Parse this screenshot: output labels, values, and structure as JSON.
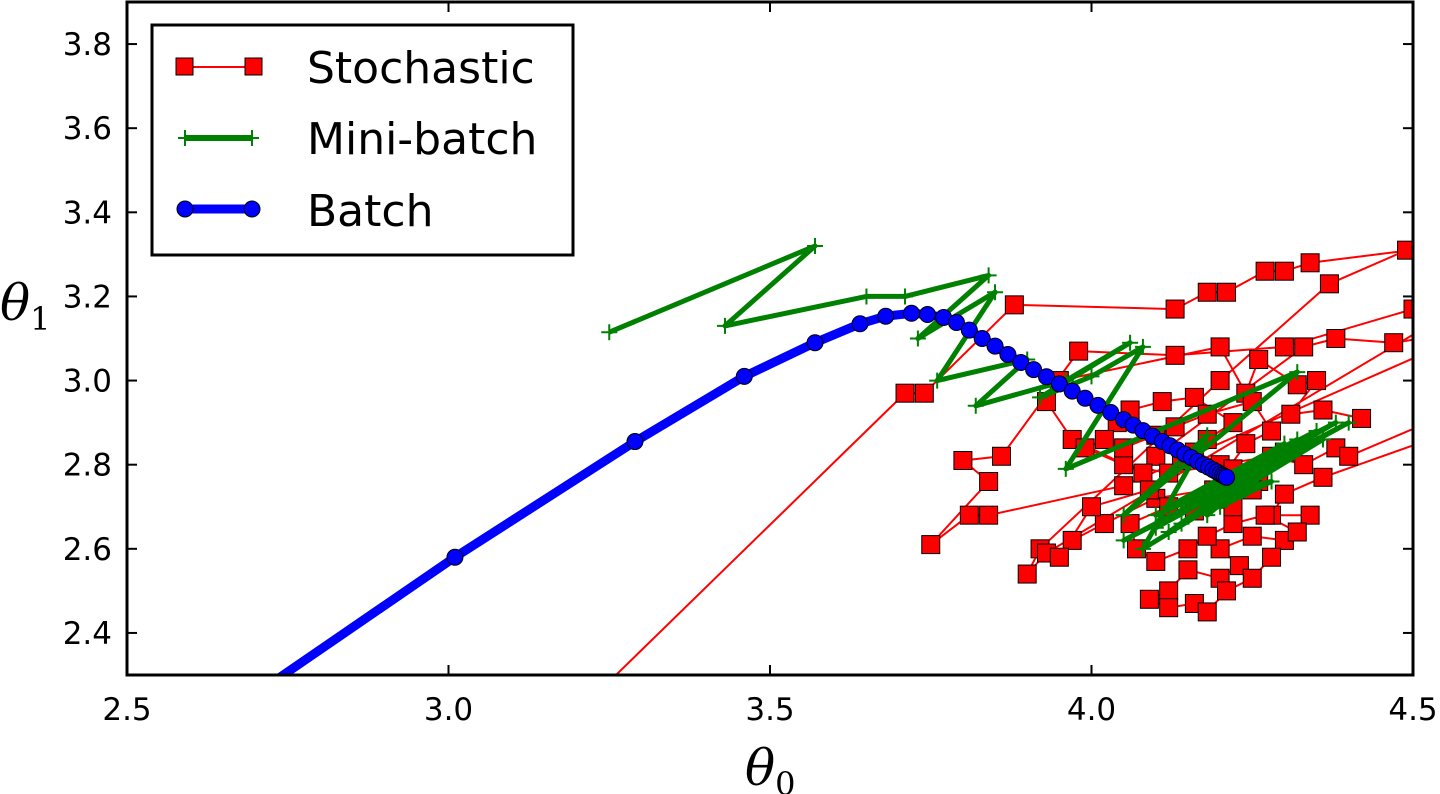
{
  "chart_data": {
    "type": "line",
    "xlabel": "θ0",
    "ylabel": "θ1",
    "xlabel_parts": {
      "symbol": "θ",
      "sub": "0"
    },
    "ylabel_parts": {
      "symbol": "θ",
      "sub": "1"
    },
    "xlim": [
      2.5,
      4.5
    ],
    "ylim": [
      2.3,
      3.9
    ],
    "xticks": [
      "2.5",
      "3.0",
      "3.5",
      "4.0",
      "4.5"
    ],
    "yticks": [
      "2.4",
      "2.6",
      "2.8",
      "3.0",
      "3.2",
      "3.4",
      "3.6",
      "3.8"
    ],
    "grid": false,
    "legend_placement": "top-left",
    "series": [
      {
        "name": "Stochastic",
        "color": "#ff0000",
        "marker": "square",
        "points": [
          [
            3.2,
            2.21
          ],
          [
            3.71,
            2.97
          ],
          [
            3.74,
            2.97
          ],
          [
            3.88,
            3.18
          ],
          [
            4.13,
            3.17
          ],
          [
            4.18,
            3.21
          ],
          [
            4.21,
            3.21
          ],
          [
            4.27,
            3.26
          ],
          [
            4.3,
            3.26
          ],
          [
            4.34,
            3.28
          ],
          [
            4.6,
            3.33
          ],
          [
            4.49,
            3.31
          ],
          [
            4.37,
            3.23
          ],
          [
            4.2,
            3.0
          ],
          [
            3.92,
            2.6
          ],
          [
            3.9,
            2.54
          ],
          [
            3.93,
            2.59
          ],
          [
            4.6,
            3.2
          ],
          [
            4.5,
            3.17
          ],
          [
            4.3,
            3.08
          ],
          [
            4.13,
            3.06
          ],
          [
            3.98,
            3.07
          ],
          [
            3.86,
            2.82
          ],
          [
            3.8,
            2.81
          ],
          [
            3.84,
            2.76
          ],
          [
            3.75,
            2.61
          ],
          [
            3.81,
            2.68
          ],
          [
            3.84,
            2.68
          ],
          [
            4.05,
            2.75
          ],
          [
            4.6,
            3.12
          ],
          [
            4.47,
            3.09
          ],
          [
            4.38,
            3.1
          ],
          [
            4.33,
            3.08
          ],
          [
            4.1,
            2.82
          ],
          [
            4.08,
            2.78
          ],
          [
            3.97,
            2.86
          ],
          [
            3.93,
            2.95
          ],
          [
            3.95,
            3.0
          ],
          [
            4.2,
            3.08
          ],
          [
            4.24,
            2.97
          ],
          [
            4.26,
            3.05
          ],
          [
            4.32,
            2.99
          ],
          [
            4.35,
            3.0
          ],
          [
            4.31,
            2.92
          ],
          [
            4.36,
            2.93
          ],
          [
            4.42,
            2.91
          ],
          [
            4.3,
            2.83
          ],
          [
            4.26,
            2.76
          ],
          [
            4.1,
            2.72
          ],
          [
            4.02,
            2.66
          ],
          [
            3.97,
            2.62
          ],
          [
            3.95,
            2.58
          ],
          [
            4.0,
            2.7
          ],
          [
            4.09,
            2.74
          ],
          [
            4.14,
            2.81
          ],
          [
            4.18,
            2.86
          ],
          [
            4.22,
            2.9
          ],
          [
            4.16,
            2.96
          ],
          [
            4.11,
            2.95
          ],
          [
            4.06,
            2.93
          ],
          [
            4.04,
            2.9
          ],
          [
            4.02,
            2.86
          ],
          [
            3.99,
            2.84
          ],
          [
            4.05,
            2.8
          ],
          [
            4.12,
            2.78
          ],
          [
            4.2,
            2.8
          ],
          [
            4.28,
            2.82
          ],
          [
            4.33,
            2.8
          ],
          [
            4.38,
            2.84
          ],
          [
            4.4,
            2.82
          ],
          [
            4.6,
            2.95
          ],
          [
            4.6,
            2.9
          ],
          [
            4.36,
            2.77
          ],
          [
            4.3,
            2.73
          ],
          [
            4.28,
            2.68
          ],
          [
            4.34,
            2.68
          ],
          [
            4.3,
            2.62
          ],
          [
            4.25,
            2.63
          ],
          [
            4.2,
            2.6
          ],
          [
            4.23,
            2.56
          ],
          [
            4.2,
            2.53
          ],
          [
            4.15,
            2.55
          ],
          [
            4.12,
            2.5
          ],
          [
            4.09,
            2.48
          ],
          [
            4.12,
            2.46
          ],
          [
            4.16,
            2.47
          ],
          [
            4.18,
            2.45
          ],
          [
            4.21,
            2.5
          ],
          [
            4.25,
            2.53
          ],
          [
            4.28,
            2.58
          ],
          [
            4.32,
            2.64
          ],
          [
            4.27,
            2.68
          ],
          [
            4.22,
            2.66
          ],
          [
            4.18,
            2.63
          ],
          [
            4.15,
            2.6
          ],
          [
            4.1,
            2.57
          ],
          [
            4.07,
            2.6
          ],
          [
            4.06,
            2.66
          ],
          [
            4.12,
            2.7
          ],
          [
            4.2,
            2.72
          ],
          [
            4.25,
            2.74
          ],
          [
            4.22,
            2.79
          ],
          [
            4.16,
            2.83
          ],
          [
            4.1,
            2.87
          ],
          [
            4.05,
            2.84
          ],
          [
            4.13,
            2.89
          ],
          [
            4.18,
            2.92
          ],
          [
            4.25,
            2.95
          ],
          [
            4.28,
            2.88
          ],
          [
            4.24,
            2.85
          ],
          [
            4.19,
            2.74
          ],
          [
            4.16,
            2.69
          ],
          [
            4.22,
            2.7
          ]
        ]
      },
      {
        "name": "Mini-batch",
        "color": "#008000",
        "marker": "plus",
        "points": [
          [
            3.25,
            3.115
          ],
          [
            3.57,
            3.32
          ],
          [
            3.43,
            3.13
          ],
          [
            3.65,
            3.2
          ],
          [
            3.71,
            3.2
          ],
          [
            3.84,
            3.25
          ],
          [
            3.73,
            3.1
          ],
          [
            3.85,
            3.21
          ],
          [
            3.76,
            3.0
          ],
          [
            3.9,
            3.05
          ],
          [
            3.82,
            2.94
          ],
          [
            3.96,
            3.0
          ],
          [
            4.06,
            3.09
          ],
          [
            3.92,
            2.96
          ],
          [
            4.0,
            3.01
          ],
          [
            4.08,
            3.08
          ],
          [
            3.96,
            2.79
          ],
          [
            4.32,
            3.02
          ],
          [
            4.05,
            2.68
          ],
          [
            4.18,
            2.87
          ],
          [
            4.08,
            2.6
          ],
          [
            4.36,
            2.86
          ],
          [
            4.05,
            2.62
          ],
          [
            4.4,
            2.9
          ],
          [
            4.1,
            2.65
          ],
          [
            4.3,
            2.85
          ],
          [
            4.12,
            2.7
          ],
          [
            4.35,
            2.88
          ],
          [
            4.14,
            2.66
          ],
          [
            4.28,
            2.8
          ],
          [
            4.1,
            2.68
          ],
          [
            4.38,
            2.9
          ],
          [
            4.15,
            2.7
          ],
          [
            4.3,
            2.82
          ],
          [
            4.12,
            2.64
          ],
          [
            4.25,
            2.78
          ],
          [
            4.18,
            2.68
          ],
          [
            4.32,
            2.86
          ],
          [
            4.16,
            2.72
          ],
          [
            4.28,
            2.76
          ],
          [
            4.2,
            2.7
          ],
          [
            4.24,
            2.74
          ]
        ]
      },
      {
        "name": "Batch",
        "color": "#0000ff",
        "marker": "circle",
        "points": [
          [
            2.6,
            2.15
          ],
          [
            3.01,
            2.58
          ],
          [
            3.29,
            2.855
          ],
          [
            3.46,
            3.01
          ],
          [
            3.57,
            3.09
          ],
          [
            3.64,
            3.135
          ],
          [
            3.68,
            3.153
          ],
          [
            3.72,
            3.16
          ],
          [
            3.745,
            3.157
          ],
          [
            3.77,
            3.15
          ],
          [
            3.79,
            3.138
          ],
          [
            3.81,
            3.12
          ],
          [
            3.83,
            3.1
          ],
          [
            3.85,
            3.082
          ],
          [
            3.87,
            3.062
          ],
          [
            3.89,
            3.043
          ],
          [
            3.91,
            3.026
          ],
          [
            3.93,
            3.009
          ],
          [
            3.95,
            2.992
          ],
          [
            3.97,
            2.975
          ],
          [
            3.99,
            2.958
          ],
          [
            4.01,
            2.941
          ],
          [
            4.03,
            2.924
          ],
          [
            4.05,
            2.907
          ],
          [
            4.065,
            2.894
          ],
          [
            4.08,
            2.881
          ],
          [
            4.095,
            2.868
          ],
          [
            4.11,
            2.855
          ],
          [
            4.122,
            2.845
          ],
          [
            4.134,
            2.835
          ],
          [
            4.145,
            2.825
          ],
          [
            4.155,
            2.817
          ],
          [
            4.165,
            2.808
          ],
          [
            4.174,
            2.8
          ],
          [
            4.182,
            2.794
          ],
          [
            4.189,
            2.788
          ],
          [
            4.195,
            2.783
          ],
          [
            4.2,
            2.778
          ],
          [
            4.204,
            2.775
          ],
          [
            4.207,
            2.772
          ],
          [
            4.21,
            2.77
          ]
        ]
      }
    ]
  }
}
